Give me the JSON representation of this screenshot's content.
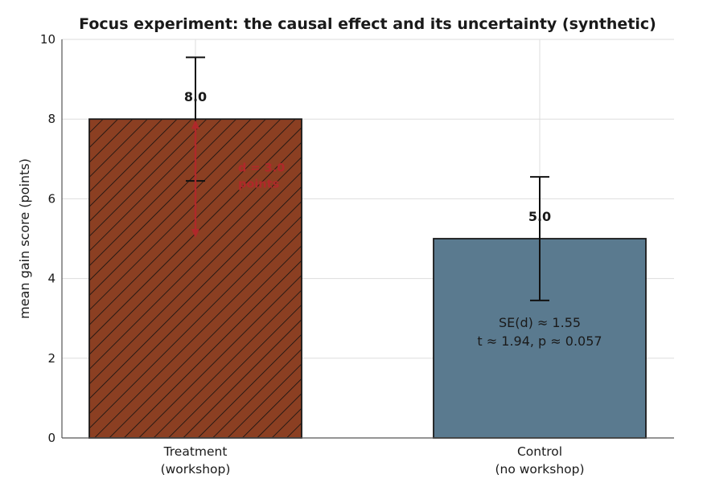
{
  "chart_data": {
    "type": "bar",
    "title": "Focus experiment: the causal effect and its uncertainty (synthetic)",
    "xlabel": "",
    "ylabel": "mean gain score (points)",
    "ylim": [
      0,
      10
    ],
    "yticks": [
      0,
      2,
      4,
      6,
      8,
      10
    ],
    "grid": true,
    "categories": [
      {
        "line1": "Treatment",
        "line2": "(workshop)"
      },
      {
        "line1": "Control",
        "line2": "(no workshop)"
      }
    ],
    "values": [
      8.0,
      5.0
    ],
    "value_labels": [
      "8.0",
      "5.0"
    ],
    "error": [
      1.55,
      1.55
    ],
    "bar_colors": [
      "#8b3f22",
      "#5a7a8f"
    ],
    "bar_hatch": [
      "diagonal",
      "none"
    ],
    "difference": {
      "value": 3.0,
      "label_line1": "d = 3.0",
      "label_line2": "points",
      "color": "#b0282a"
    },
    "annotation": {
      "line1": "SE(d) ≈ 1.55",
      "line2": "t ≈ 1.94,  p ≈ 0.057"
    }
  }
}
